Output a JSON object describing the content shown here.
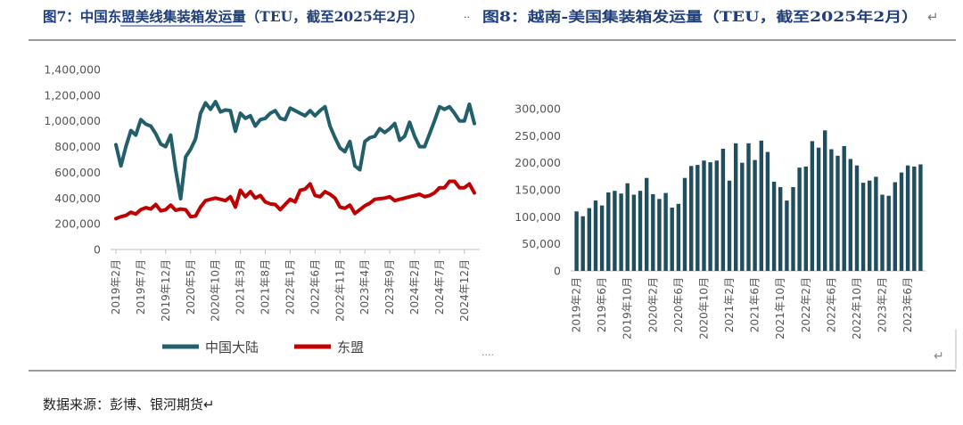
{
  "header": {
    "left_title": "图7：中国东盟美线集装箱发运量（TEU，截至2025年2月）",
    "separator": "··",
    "right_title": "图8：越南-美国集装箱发运量（TEU，截至2025年2月）",
    "return_mark": "↵"
  },
  "footer": {
    "source": "数据来源：彭博、银河期货↵",
    "dots": "····",
    "return_mark": "↵"
  },
  "colors": {
    "china": "#235F6A",
    "asean": "#C00000",
    "bar": "#1F4E5F",
    "axis_text": "#555555",
    "header_text": "#1F3E7A"
  },
  "chart_data": [
    {
      "type": "line",
      "title": "图7：中国东盟美线集装箱发运量（TEU，截至2025年2月）",
      "x_start": "2019年2月",
      "ylim": [
        0,
        1400000
      ],
      "yticks": [
        "0",
        "200,000",
        "400,000",
        "600,000",
        "800,000",
        "1,000,000",
        "1,200,000",
        "1,400,000"
      ],
      "xtick_labels": [
        "2019年2月",
        "2019年7月",
        "2019年12月",
        "2020年5月",
        "2020年10月",
        "2021年3月",
        "2021年8月",
        "2022年1月",
        "2022年6月",
        "2022年11月",
        "2023年4月",
        "2023年9月",
        "2024年2月",
        "2024年7月",
        "2024年12月"
      ],
      "series": [
        {
          "name": "中国大陆",
          "values": [
            815000,
            650000,
            800000,
            925000,
            890000,
            1010000,
            975000,
            960000,
            900000,
            820000,
            800000,
            890000,
            620000,
            395000,
            720000,
            780000,
            860000,
            1060000,
            1140000,
            1090000,
            1150000,
            1070000,
            1085000,
            1080000,
            920000,
            1060000,
            1020000,
            1040000,
            960000,
            1010000,
            1020000,
            1060000,
            1080000,
            1020000,
            1010000,
            1100000,
            1080000,
            1060000,
            1040000,
            1080000,
            1040000,
            1080000,
            1110000,
            960000,
            870000,
            790000,
            760000,
            840000,
            650000,
            620000,
            840000,
            870000,
            880000,
            940000,
            910000,
            940000,
            980000,
            850000,
            880000,
            990000,
            880000,
            800000,
            800000,
            900000,
            1000000,
            1110000,
            1090000,
            1110000,
            1060000,
            1000000,
            1000000,
            1130000,
            980000
          ]
        },
        {
          "name": "东盟",
          "values": [
            240000,
            255000,
            265000,
            290000,
            275000,
            310000,
            325000,
            315000,
            350000,
            300000,
            310000,
            345000,
            305000,
            315000,
            310000,
            255000,
            260000,
            330000,
            380000,
            390000,
            400000,
            390000,
            380000,
            410000,
            330000,
            460000,
            410000,
            450000,
            400000,
            420000,
            370000,
            355000,
            350000,
            310000,
            350000,
            390000,
            370000,
            460000,
            470000,
            510000,
            420000,
            410000,
            450000,
            430000,
            400000,
            330000,
            320000,
            345000,
            280000,
            310000,
            340000,
            360000,
            390000,
            395000,
            400000,
            410000,
            380000,
            390000,
            400000,
            410000,
            420000,
            430000,
            410000,
            420000,
            440000,
            480000,
            480000,
            530000,
            530000,
            480000,
            480000,
            510000,
            440000
          ]
        }
      ],
      "legend": [
        "中国大陆",
        "东盟"
      ],
      "legend_position": "bottom"
    },
    {
      "type": "bar",
      "title": "图8：越南-美国集装箱发运量（TEU，截至2025年2月）",
      "ylim": [
        0,
        300000
      ],
      "yticks": [
        "0",
        "50,000",
        "100,000",
        "150,000",
        "200,000",
        "250,000",
        "300,000"
      ],
      "xtick_labels": [
        "2019年2月",
        "2019年6月",
        "2019年10月",
        "2020年2月",
        "2020年6月",
        "2020年10月",
        "2021年2月",
        "2021年6月",
        "2021年10月",
        "2022年2月",
        "2022年6月",
        "2022年10月",
        "2023年2月",
        "2023年6月"
      ],
      "series": [
        {
          "name": "越南-美国",
          "values": [
            110000,
            101000,
            116000,
            130000,
            121000,
            145000,
            148000,
            143000,
            162000,
            141000,
            148000,
            172000,
            142000,
            133000,
            144000,
            117000,
            124000,
            172000,
            194000,
            196000,
            204000,
            201000,
            204000,
            226000,
            167000,
            236000,
            200000,
            236000,
            205000,
            241000,
            220000,
            165000,
            155000,
            130000,
            155000,
            191000,
            193000,
            240000,
            228000,
            260000,
            225000,
            213000,
            231000,
            207000,
            195000,
            163000,
            167000,
            174000,
            141000,
            139000,
            164000,
            182000,
            195000,
            193000,
            197000
          ]
        }
      ]
    }
  ]
}
